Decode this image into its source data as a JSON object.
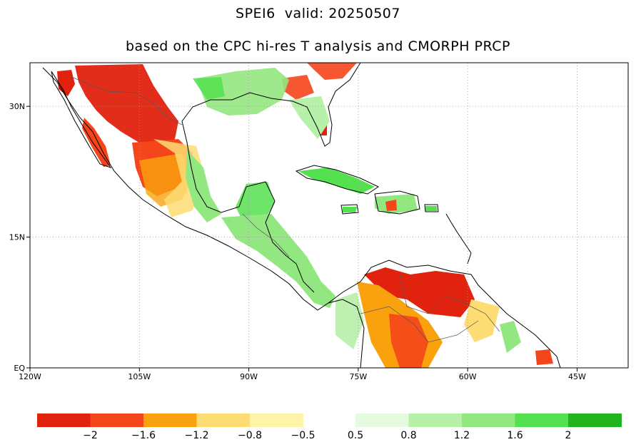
{
  "title": "SPEI6  valid: 20250507",
  "subtitle": "based on the CPC hi-res T analysis and CMORPH PRCP",
  "map": {
    "lon_range": [
      -120,
      -38
    ],
    "lat_range": [
      0,
      35
    ],
    "x_ticks": [
      {
        "lon": -120,
        "label": "120W"
      },
      {
        "lon": -105,
        "label": "105W"
      },
      {
        "lon": -90,
        "label": "90W"
      },
      {
        "lon": -75,
        "label": "75W"
      },
      {
        "lon": -60,
        "label": "60W"
      },
      {
        "lon": -45,
        "label": "45W"
      }
    ],
    "y_ticks": [
      {
        "lat": 0,
        "label": "EQ"
      },
      {
        "lat": 15,
        "label": "15N"
      },
      {
        "lat": 30,
        "label": "30N"
      }
    ],
    "grid": "dotted"
  },
  "colorbar": {
    "dry": {
      "colors": [
        "#e1220f",
        "#f5451a",
        "#f9a20e",
        "#fddc73",
        "#fff5a8"
      ],
      "labels": [
        "−2",
        "−1.6",
        "−1.2",
        "−0.8",
        "−0.5"
      ]
    },
    "wet": {
      "colors": [
        "#e4fbe0",
        "#b7f0a8",
        "#93e780",
        "#55e04f",
        "#21b41f"
      ],
      "labels": [
        "0.5",
        "0.8",
        "1.2",
        "1.6",
        "2"
      ]
    }
  }
}
